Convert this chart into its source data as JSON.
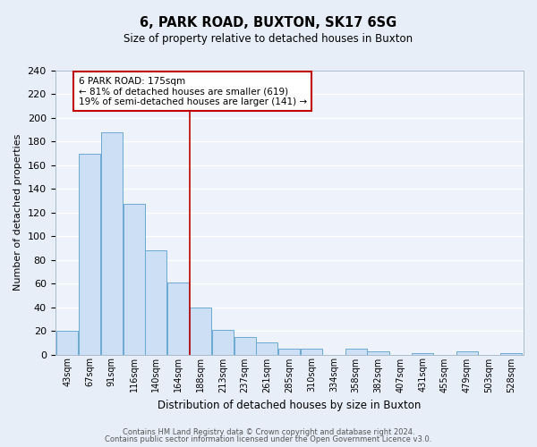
{
  "title": "6, PARK ROAD, BUXTON, SK17 6SG",
  "subtitle": "Size of property relative to detached houses in Buxton",
  "xlabel": "Distribution of detached houses by size in Buxton",
  "ylabel": "Number of detached properties",
  "bin_labels": [
    "43sqm",
    "67sqm",
    "91sqm",
    "116sqm",
    "140sqm",
    "164sqm",
    "188sqm",
    "213sqm",
    "237sqm",
    "261sqm",
    "285sqm",
    "310sqm",
    "334sqm",
    "358sqm",
    "382sqm",
    "407sqm",
    "431sqm",
    "455sqm",
    "479sqm",
    "503sqm",
    "528sqm"
  ],
  "bar_values": [
    20,
    170,
    188,
    127,
    88,
    61,
    40,
    21,
    15,
    10,
    5,
    5,
    0,
    5,
    3,
    0,
    1,
    0,
    3,
    0,
    1
  ],
  "bar_color": "#ccdff5",
  "bar_edge_color": "#6aaad4",
  "ylim": [
    0,
    240
  ],
  "yticks": [
    0,
    20,
    40,
    60,
    80,
    100,
    120,
    140,
    160,
    180,
    200,
    220,
    240
  ],
  "vline_x_index": 5.5,
  "vline_color": "#c00000",
  "annotation_title": "6 PARK ROAD: 175sqm",
  "annotation_line1": "← 81% of detached houses are smaller (619)",
  "annotation_line2": "19% of semi-detached houses are larger (141) →",
  "annotation_box_color": "#ffffff",
  "annotation_box_edge": "#c00000",
  "footer1": "Contains HM Land Registry data © Crown copyright and database right 2024.",
  "footer2": "Contains public sector information licensed under the Open Government Licence v3.0.",
  "bg_color": "#e8eef8",
  "plot_bg_color": "#eef3fb",
  "grid_color": "#ffffff"
}
